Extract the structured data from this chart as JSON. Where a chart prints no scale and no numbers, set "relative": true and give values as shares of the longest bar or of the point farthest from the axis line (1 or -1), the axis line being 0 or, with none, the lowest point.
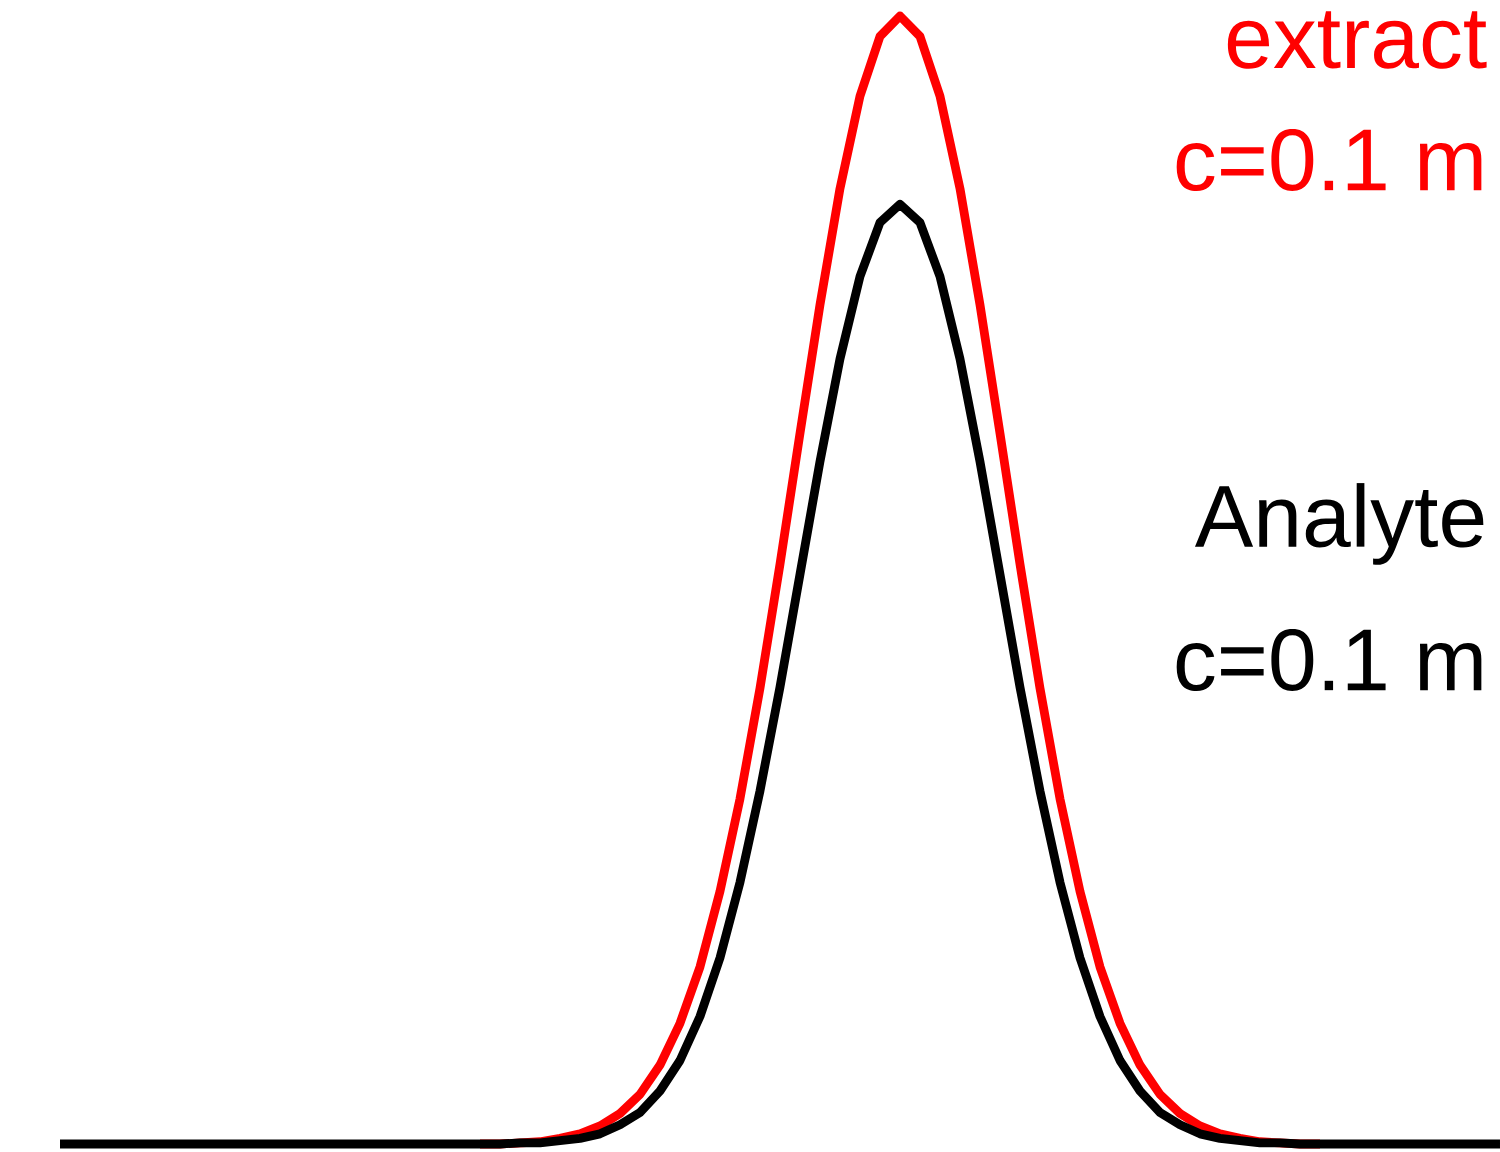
{
  "chart_data": {
    "type": "line",
    "relative": true,
    "categories": [
      null,
      null,
      null,
      null,
      null,
      null,
      null,
      null,
      null,
      null,
      null,
      null,
      null,
      null,
      null,
      null,
      null,
      null,
      null,
      null,
      null,
      null,
      null,
      null,
      null,
      null,
      null,
      null,
      null,
      null,
      null,
      null,
      null,
      null,
      null,
      null,
      null,
      null,
      null,
      null,
      null,
      null,
      null,
      null,
      null,
      null,
      null,
      null,
      null,
      null,
      null,
      null,
      null,
      null,
      null,
      null,
      null,
      null,
      null,
      null,
      null,
      null,
      null,
      null,
      null,
      null,
      null,
      null,
      null,
      null,
      null,
      null,
      null
    ],
    "series": [
      {
        "name": "extract",
        "color": "#ff0000",
        "values": [
          null,
          null,
          null,
          null,
          null,
          null,
          null,
          null,
          null,
          null,
          null,
          null,
          null,
          null,
          null,
          null,
          null,
          null,
          null,
          null,
          null,
          0,
          0,
          0.001,
          0.002,
          0.005,
          0.009,
          0.016,
          0.027,
          0.044,
          0.07,
          0.107,
          0.157,
          0.224,
          0.306,
          0.404,
          0.514,
          0.63,
          0.744,
          0.847,
          0.929,
          0.982,
          1,
          0.982,
          0.929,
          0.847,
          0.744,
          0.63,
          0.514,
          0.404,
          0.306,
          0.224,
          0.157,
          0.107,
          0.07,
          0.044,
          0.027,
          0.016,
          0.009,
          0.005,
          0.002,
          0.001,
          0,
          0,
          null,
          null,
          null,
          null,
          null,
          null,
          null,
          null,
          null
        ]
      },
      {
        "name": "Analyte",
        "color": "#000000",
        "values": [
          0,
          0,
          0,
          0,
          0,
          0,
          0,
          0,
          0,
          0,
          0,
          0,
          0,
          0,
          0,
          0,
          0,
          0,
          0,
          0,
          0,
          0,
          0,
          0.001,
          0.001,
          0.003,
          0.005,
          0.009,
          0.017,
          0.028,
          0.047,
          0.074,
          0.113,
          0.165,
          0.232,
          0.313,
          0.405,
          0.505,
          0.605,
          0.696,
          0.769,
          0.817,
          0.833,
          0.817,
          0.769,
          0.696,
          0.605,
          0.505,
          0.405,
          0.313,
          0.232,
          0.165,
          0.113,
          0.074,
          0.047,
          0.028,
          0.017,
          0.009,
          0.005,
          0.003,
          0.001,
          0.001,
          0,
          0,
          0,
          0,
          0,
          0,
          0,
          0,
          0,
          0,
          0
        ]
      }
    ],
    "annotations": [
      "c=0.1 m",
      "c=0.1 m"
    ]
  }
}
